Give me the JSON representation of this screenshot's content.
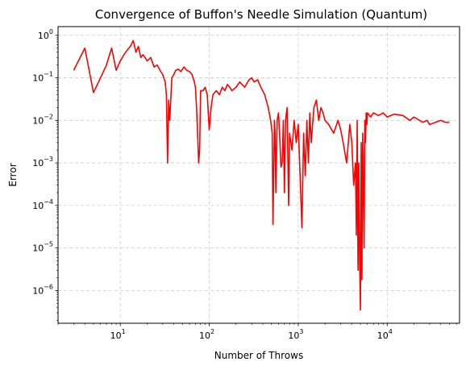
{
  "chart_data": {
    "type": "line",
    "title": "Convergence of Buffon's Needle Simulation (Quantum)",
    "xlabel": "Number of Throws",
    "ylabel": "Error",
    "xscale": "log",
    "yscale": "log",
    "xlim": [
      2,
      65000
    ],
    "ylim": [
      1.7e-07,
      1.6
    ],
    "grid": true,
    "x_ticks": [
      {
        "base": "10",
        "exp": "1"
      },
      {
        "base": "10",
        "exp": "2"
      },
      {
        "base": "10",
        "exp": "3"
      },
      {
        "base": "10",
        "exp": "4"
      }
    ],
    "y_ticks": [
      {
        "base": "10",
        "exp": "−6"
      },
      {
        "base": "10",
        "exp": "−5"
      },
      {
        "base": "10",
        "exp": "−4"
      },
      {
        "base": "10",
        "exp": "−3"
      },
      {
        "base": "10",
        "exp": "−2"
      },
      {
        "base": "10",
        "exp": "−1"
      },
      {
        "base": "10",
        "exp": "0"
      }
    ],
    "series": [
      {
        "color": "#ff0000",
        "x": [
          3,
          4,
          5,
          6,
          7,
          8,
          9,
          10,
          11,
          12,
          13,
          14,
          15,
          16,
          17,
          18,
          19,
          20,
          22,
          24,
          26,
          28,
          30,
          32,
          33,
          34,
          35,
          36,
          38,
          40,
          42,
          45,
          48,
          52,
          56,
          60,
          64,
          68,
          70,
          72,
          74,
          76,
          78,
          80,
          85,
          90,
          95,
          100,
          105,
          110,
          120,
          130,
          140,
          150,
          160,
          170,
          180,
          200,
          220,
          250,
          280,
          300,
          320,
          350,
          380,
          420,
          460,
          490,
          510,
          520,
          530,
          540,
          550,
          560,
          580,
          600,
          620,
          640,
          660,
          680,
          700,
          720,
          750,
          780,
          800,
          850,
          900,
          950,
          1000,
          1050,
          1100,
          1150,
          1200,
          1250,
          1300,
          1350,
          1400,
          1500,
          1600,
          1700,
          1800,
          1900,
          2000,
          2200,
          2500,
          2800,
          3000,
          3200,
          3500,
          3800,
          4000,
          4200,
          4400,
          4500,
          4600,
          4700,
          4800,
          4900,
          5000,
          5100,
          5200,
          5300,
          5400,
          5500,
          5600,
          5700,
          5800,
          5900,
          6000,
          6500,
          7000,
          8000,
          9000,
          10000,
          12000,
          15000,
          18000,
          20000,
          25000,
          28000,
          30000,
          35000,
          40000,
          45000,
          50000
        ],
        "y": [
          0.15,
          0.5,
          0.045,
          0.1,
          0.2,
          0.5,
          0.15,
          0.25,
          0.35,
          0.45,
          0.55,
          0.75,
          0.4,
          0.55,
          0.3,
          0.35,
          0.3,
          0.25,
          0.3,
          0.18,
          0.2,
          0.15,
          0.12,
          0.08,
          0.04,
          0.001,
          0.03,
          0.01,
          0.1,
          0.12,
          0.15,
          0.16,
          0.14,
          0.18,
          0.15,
          0.14,
          0.12,
          0.08,
          0.06,
          0.02,
          0.005,
          0.001,
          0.002,
          0.05,
          0.05,
          0.06,
          0.04,
          0.006,
          0.02,
          0.04,
          0.05,
          0.04,
          0.06,
          0.05,
          0.07,
          0.06,
          0.05,
          0.06,
          0.08,
          0.06,
          0.09,
          0.1,
          0.08,
          0.09,
          0.06,
          0.04,
          0.02,
          0.01,
          0.005,
          3.6e-05,
          0.0005,
          0.01,
          0.005,
          0.0002,
          0.01,
          0.015,
          0.004,
          0.0008,
          0.001,
          0.01,
          0.0002,
          0.01,
          0.02,
          0.0001,
          0.005,
          0.002,
          0.01,
          0.003,
          0.008,
          0.0005,
          3e-05,
          0.005,
          0.0005,
          0.01,
          0.001,
          0.015,
          0.003,
          0.02,
          0.03,
          0.01,
          0.02,
          0.015,
          0.01,
          0.008,
          0.005,
          0.01,
          0.006,
          0.003,
          0.001,
          0.008,
          0.003,
          0.0003,
          0.001,
          2e-05,
          0.01,
          3e-06,
          0.001,
          5e-06,
          3.5e-07,
          0.003,
          1.8e-06,
          0.005,
          0.0003,
          1e-05,
          0.01,
          0.003,
          0.015,
          0.008,
          0.015,
          0.012,
          0.015,
          0.013,
          0.015,
          0.012,
          0.014,
          0.013,
          0.01,
          0.012,
          0.009,
          0.01,
          0.008,
          0.009,
          0.01,
          0.009,
          0.009
        ]
      }
    ]
  }
}
